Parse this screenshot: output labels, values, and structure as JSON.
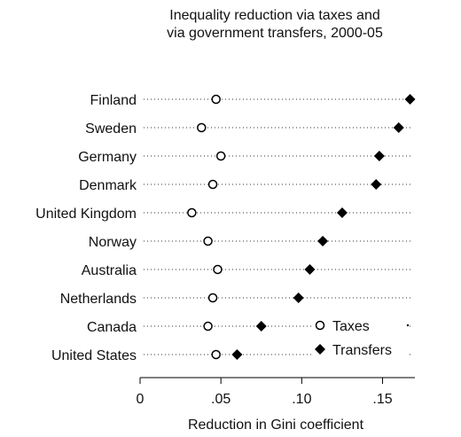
{
  "chart_data": {
    "type": "scatter",
    "title_lines": [
      "Inequality reduction via taxes and",
      "via government transfers, 2000-05"
    ],
    "xlabel": "Reduction in Gini coefficient",
    "ylabel": "",
    "xlim": [
      0,
      0.17
    ],
    "x_ticks": [
      {
        "value": 0,
        "label": "0"
      },
      {
        "value": 0.05,
        "label": ".05"
      },
      {
        "value": 0.1,
        "label": ".10"
      },
      {
        "value": 0.15,
        "label": ".15"
      }
    ],
    "categories": [
      "Finland",
      "Sweden",
      "Germany",
      "Denmark",
      "United Kingdom",
      "Norway",
      "Australia",
      "Netherlands",
      "Canada",
      "United States"
    ],
    "series": [
      {
        "name": "Taxes",
        "marker": "hollow-circle",
        "color": "#000000",
        "values": [
          0.047,
          0.038,
          0.05,
          0.045,
          0.032,
          0.042,
          0.048,
          0.045,
          0.042,
          0.047
        ]
      },
      {
        "name": "Transfers",
        "marker": "filled-diamond",
        "color": "#000000",
        "values": [
          0.167,
          0.16,
          0.148,
          0.146,
          0.125,
          0.113,
          0.105,
          0.098,
          0.075,
          0.06
        ]
      }
    ],
    "gridlines": "dotted-horizontal",
    "legend_position": "bottom-right"
  }
}
